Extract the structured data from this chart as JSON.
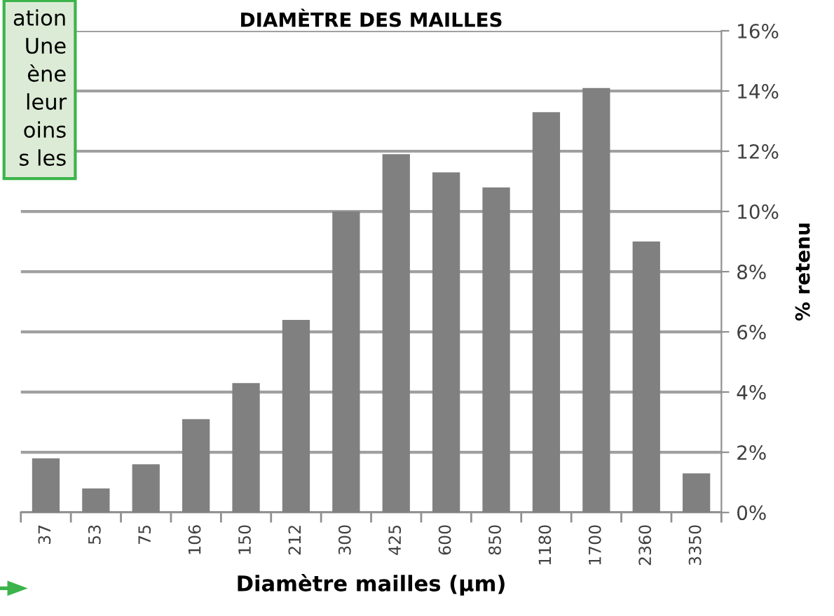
{
  "chart_data": {
    "type": "bar",
    "title": "DIAMÈTRE DES MAILLES",
    "xlabel": "Diamètre mailles (µm)",
    "ylabel": "% retenu",
    "categories": [
      "37",
      "53",
      "75",
      "106",
      "150",
      "212",
      "300",
      "425",
      "600",
      "850",
      "1180",
      "1700",
      "2360",
      "3350"
    ],
    "values": [
      1.8,
      0.8,
      1.6,
      3.1,
      4.3,
      6.4,
      10.0,
      11.9,
      11.3,
      10.8,
      13.3,
      14.1,
      9.0,
      1.3
    ],
    "color": "#808080",
    "ylim": [
      0,
      16
    ],
    "yticks": [
      {
        "value": 0,
        "label": "0%"
      },
      {
        "value": 2,
        "label": "2%"
      },
      {
        "value": 4,
        "label": "4%"
      },
      {
        "value": 6,
        "label": "6%"
      },
      {
        "value": 8,
        "label": "8%"
      },
      {
        "value": 10,
        "label": "10%"
      },
      {
        "value": 12,
        "label": "12%"
      },
      {
        "value": 14,
        "label": "14%"
      },
      {
        "value": 16,
        "label": "16%"
      }
    ],
    "grid": "y",
    "annotations": [
      "ation\nUne\nène\nleur\noins\ns les"
    ]
  }
}
